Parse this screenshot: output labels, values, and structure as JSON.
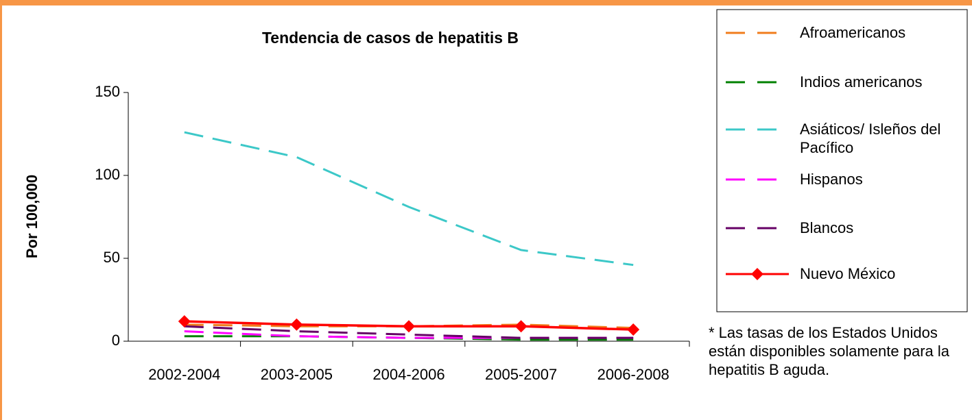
{
  "chart_data": {
    "type": "line",
    "title": "Tendencia de casos de hepatitis B",
    "y_label": "Por 100,000",
    "categories": [
      "2002-2004",
      "2003-2005",
      "2004-2006",
      "2005-2007",
      "2006-2008"
    ],
    "series": [
      {
        "name": "Afroamericanos",
        "color": "#f07c1c",
        "style": "dashed",
        "values": [
          10,
          9,
          9,
          10,
          8
        ]
      },
      {
        "name": "Indios americanos",
        "color": "#008000",
        "style": "dashed",
        "values": [
          3,
          3,
          2,
          1,
          1
        ]
      },
      {
        "name": "Asiáticos/ Isleños del Pacífico",
        "color": "#3cc8c8",
        "style": "dashed",
        "values": [
          126,
          111,
          81,
          55,
          46
        ]
      },
      {
        "name": "Hispanos",
        "color": "#ff00ff",
        "style": "dashed",
        "values": [
          6,
          3,
          2,
          2,
          2
        ]
      },
      {
        "name": "Blancos",
        "color": "#660066",
        "style": "dashed",
        "values": [
          9,
          6,
          4,
          2,
          2
        ]
      },
      {
        "name": "Nuevo México",
        "color": "#ff0000",
        "style": "solid",
        "marker": "diamond",
        "values": [
          12,
          10,
          9,
          9,
          7
        ]
      }
    ],
    "ylim": [
      0,
      150
    ],
    "yticks": [
      0,
      50,
      100,
      150
    ],
    "grid": false,
    "legend": "right",
    "note": "* Las tasas de los Estados Unidos están disponibles solamente para la hepatitis B aguda."
  }
}
